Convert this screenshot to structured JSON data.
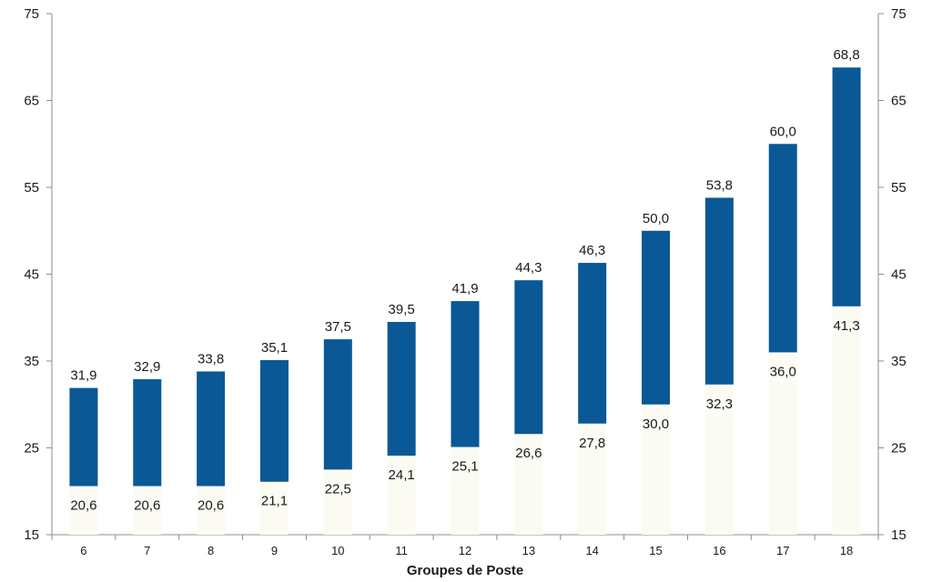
{
  "chart_data": {
    "type": "bar",
    "categories": [
      "6",
      "7",
      "8",
      "9",
      "10",
      "11",
      "12",
      "13",
      "14",
      "15",
      "16",
      "17",
      "18"
    ],
    "series": [
      {
        "values_min": [
          20.6,
          20.6,
          20.6,
          21.1,
          22.5,
          24.1,
          25.1,
          26.6,
          27.8,
          30.0,
          32.3,
          36.0,
          41.3
        ],
        "values_max": [
          31.9,
          32.9,
          33.8,
          35.1,
          37.5,
          39.5,
          41.9,
          44.3,
          46.3,
          50.0,
          53.8,
          60.0,
          68.8
        ]
      }
    ],
    "min_labels": [
      "20,6",
      "20,6",
      "20,6",
      "21,1",
      "22,5",
      "24,1",
      "25,1",
      "26,6",
      "27,8",
      "30,0",
      "32,3",
      "36,0",
      "41,3"
    ],
    "max_labels": [
      "31,9",
      "32,9",
      "33,8",
      "35,1",
      "37,5",
      "39,5",
      "41,9",
      "44,3",
      "46,3",
      "50,0",
      "53,8",
      "60,0",
      "68,8"
    ],
    "xlabel": "Groupes de Poste",
    "ylabel": "",
    "ylim": [
      15,
      75
    ],
    "yticks": [
      15,
      25,
      35,
      45,
      55,
      65,
      75
    ],
    "ytick_labels": [
      "15",
      "25",
      "35",
      "45",
      "55",
      "65",
      "75"
    ],
    "grid": false,
    "secondary_y_axis": true,
    "colors": {
      "bar": "#0a5896",
      "axis": "#8c8c8c",
      "text": "#1a1a1a"
    }
  }
}
